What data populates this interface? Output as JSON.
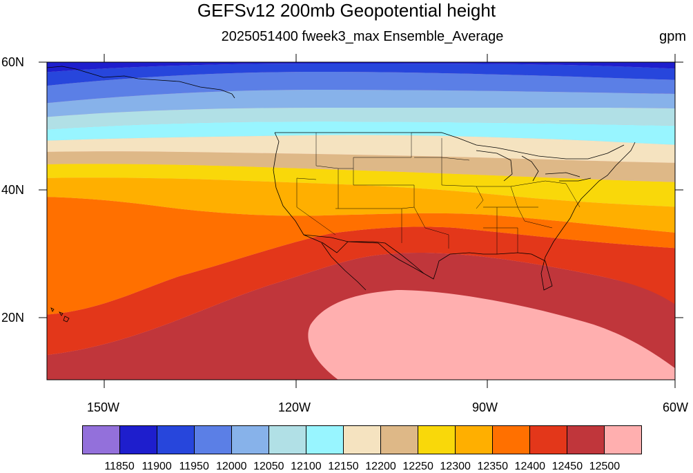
{
  "header": {
    "title": "GEFSv12 200mb Geopotential height",
    "subtitle": "2025051400 fweek3_max Ensemble_Average",
    "units": "gpm"
  },
  "map": {
    "lon_range": [
      -160,
      -60
    ],
    "lat_range": [
      10,
      60
    ],
    "lat_labels": [
      "60N",
      "40N",
      "20N"
    ],
    "lon_labels": [
      "150W",
      "120W",
      "90W",
      "60W"
    ],
    "field": "200mb geopotential height",
    "contour_fill_colors": [
      "#9370DB",
      "#1E1ECD",
      "#2746DC",
      "#5B7FE6",
      "#87B2EA",
      "#B1E0E6",
      "#98F5FF",
      "#F5E3C0",
      "#DEB887",
      "#F9D80A",
      "#FFAF00",
      "#FF7000",
      "#E3371A",
      "#C0363B",
      "#FFAFAF"
    ],
    "land_outline_color": "#000000"
  },
  "colorbar": {
    "levels": [
      "11850",
      "11900",
      "11950",
      "12000",
      "12050",
      "12100",
      "12150",
      "12200",
      "12250",
      "12300",
      "12350",
      "12400",
      "12450",
      "12500"
    ],
    "colors": [
      "#9370DB",
      "#1E1ECD",
      "#2746DC",
      "#5B7FE6",
      "#87B2EA",
      "#B1E0E6",
      "#98F5FF",
      "#F5E3C0",
      "#DEB887",
      "#F9D80A",
      "#FFAF00",
      "#FF7000",
      "#E3371A",
      "#C0363B",
      "#FFAFAF"
    ]
  }
}
